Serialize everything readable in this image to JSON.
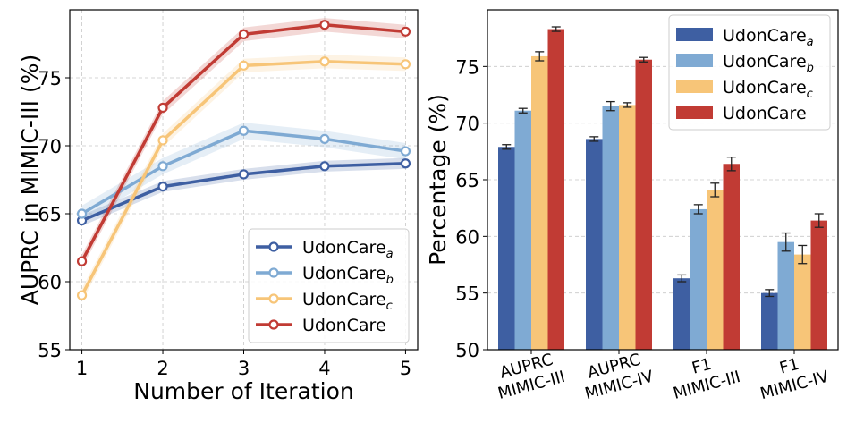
{
  "colors": {
    "udoncare_a": "#3E5FA2",
    "udoncare_b": "#7FAAD3",
    "udoncare_c": "#F7C578",
    "udoncare": "#C13B34",
    "grid": "#c8c8c8",
    "errorbar": "#222222"
  },
  "chart_data": [
    {
      "type": "line",
      "xlabel": "Number of Iteration",
      "ylabel": "AUPRC in MIMIC-III (%)",
      "x": [
        1,
        2,
        3,
        4,
        5
      ],
      "xticks": [
        "1",
        "2",
        "3",
        "4",
        "5"
      ],
      "xlim": [
        0.85,
        5.15
      ],
      "ylim": [
        55,
        80
      ],
      "yticks": [
        "55",
        "60",
        "65",
        "70",
        "75"
      ],
      "grid": true,
      "legend_position": "lower-right",
      "series": [
        {
          "name": "UdonCare",
          "sub": "a",
          "color_key": "udoncare_a",
          "values": [
            64.5,
            67.0,
            67.9,
            68.5,
            68.7
          ],
          "band": 0.4
        },
        {
          "name": "UdonCare",
          "sub": "b",
          "color_key": "udoncare_b",
          "values": [
            65.0,
            68.5,
            71.1,
            70.5,
            69.6
          ],
          "band": 0.6
        },
        {
          "name": "UdonCare",
          "sub": "c",
          "color_key": "udoncare_c",
          "values": [
            59.0,
            70.4,
            75.9,
            76.2,
            76.0
          ],
          "band": 0.5
        },
        {
          "name": "UdonCare",
          "sub": "",
          "color_key": "udoncare",
          "values": [
            61.5,
            72.8,
            78.2,
            78.9,
            78.4
          ],
          "band": 0.5
        }
      ]
    },
    {
      "type": "bar",
      "ylabel": "Percentage (%)",
      "categories": [
        [
          "AUPRC",
          "MIMIC-III"
        ],
        [
          "AUPRC",
          "MIMIC-IV"
        ],
        [
          "F1",
          "MIMIC-III"
        ],
        [
          "F1",
          "MIMIC-IV"
        ]
      ],
      "ylim": [
        50,
        80
      ],
      "yticks": [
        "50",
        "55",
        "60",
        "65",
        "70",
        "75"
      ],
      "grid": true,
      "legend_position": "top-right",
      "series": [
        {
          "name": "UdonCare",
          "sub": "a",
          "color_key": "udoncare_a",
          "values": [
            67.9,
            68.6,
            56.3,
            55.0
          ],
          "errors": [
            0.2,
            0.2,
            0.3,
            0.3
          ]
        },
        {
          "name": "UdonCare",
          "sub": "b",
          "color_key": "udoncare_b",
          "values": [
            71.1,
            71.5,
            62.4,
            59.5
          ],
          "errors": [
            0.2,
            0.4,
            0.4,
            0.8
          ]
        },
        {
          "name": "UdonCare",
          "sub": "c",
          "color_key": "udoncare_c",
          "values": [
            75.9,
            71.6,
            64.1,
            58.4
          ],
          "errors": [
            0.4,
            0.2,
            0.6,
            0.8
          ]
        },
        {
          "name": "UdonCare",
          "sub": "",
          "color_key": "udoncare",
          "values": [
            78.3,
            75.6,
            66.4,
            61.4
          ],
          "errors": [
            0.2,
            0.2,
            0.6,
            0.6
          ]
        }
      ]
    }
  ]
}
